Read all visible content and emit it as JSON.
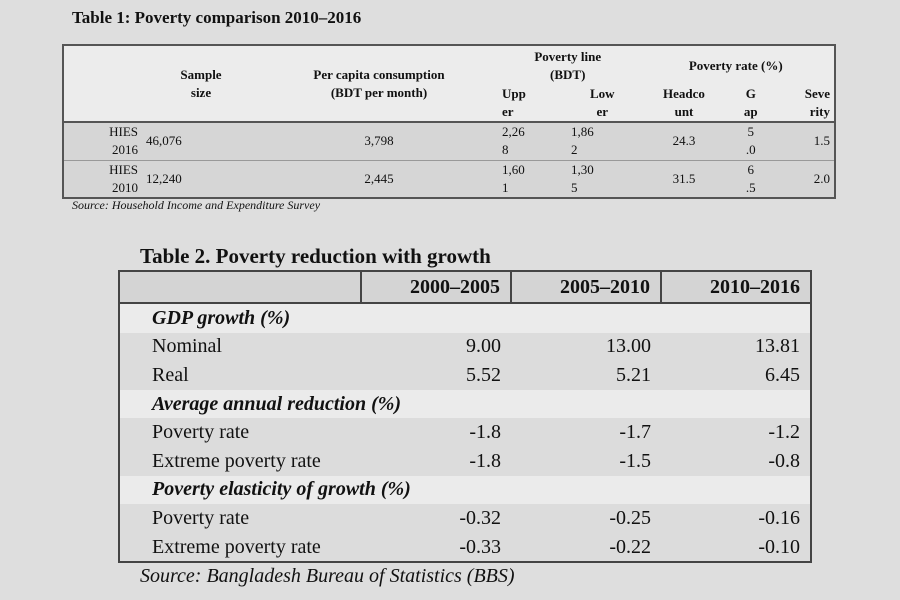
{
  "table1": {
    "title": "Table 1: Poverty comparison 2010–2016",
    "headers": {
      "sample": "Sample size",
      "consumption": "Per capita consumption",
      "consumption_unit": "(BDT per month)",
      "poverty_line": "Poverty line (BDT)",
      "upper": "Upp er",
      "lower": "Low er",
      "poverty_rate": "Poverty rate (%)",
      "headcount": "Headco unt",
      "gap": "G ap",
      "severity": "Seve rity"
    },
    "rows": [
      {
        "survey": "HIES 2016",
        "sample": "46,076",
        "consumption": "3,798",
        "upper": "2,26 8",
        "lower": "1,86 2",
        "headcount": "24.3",
        "gap": "5 .0",
        "severity": "1.5"
      },
      {
        "survey": "HIES 2010",
        "sample": "12,240",
        "consumption": "2,445",
        "upper": "1,60 1",
        "lower": "1,30 5",
        "headcount": "31.5",
        "gap": "6 .5",
        "severity": "2.0"
      }
    ],
    "source": "Source: Household Income and Expenditure Survey"
  },
  "table2": {
    "title": "Table 2. Poverty reduction with growth",
    "columns": [
      "",
      "2000–2005",
      "2005–2010",
      "2010–2016"
    ],
    "rows": [
      {
        "type": "section",
        "label": "GDP growth (%)"
      },
      {
        "type": "row",
        "label": "Nominal",
        "values": [
          "9.00",
          "13.00",
          "13.81"
        ]
      },
      {
        "type": "row",
        "label": "Real",
        "values": [
          "5.52",
          "5.21",
          "6.45"
        ]
      },
      {
        "type": "section",
        "label": "Average annual reduction (%)"
      },
      {
        "type": "row",
        "label": "Poverty rate",
        "values": [
          "-1.8",
          "-1.7",
          "-1.2"
        ]
      },
      {
        "type": "row",
        "label": "Extreme poverty rate",
        "values": [
          "-1.8",
          "-1.5",
          "-0.8"
        ]
      },
      {
        "type": "section",
        "label": "Poverty elasticity of growth (%)"
      },
      {
        "type": "row",
        "label": "Poverty rate",
        "values": [
          "-0.32",
          "-0.25",
          "-0.16"
        ]
      },
      {
        "type": "row",
        "label": "Extreme poverty rate",
        "values": [
          "-0.33",
          "-0.22",
          "-0.10"
        ]
      }
    ],
    "source": "Source: Bangladesh Bureau of Statistics (BBS)"
  }
}
